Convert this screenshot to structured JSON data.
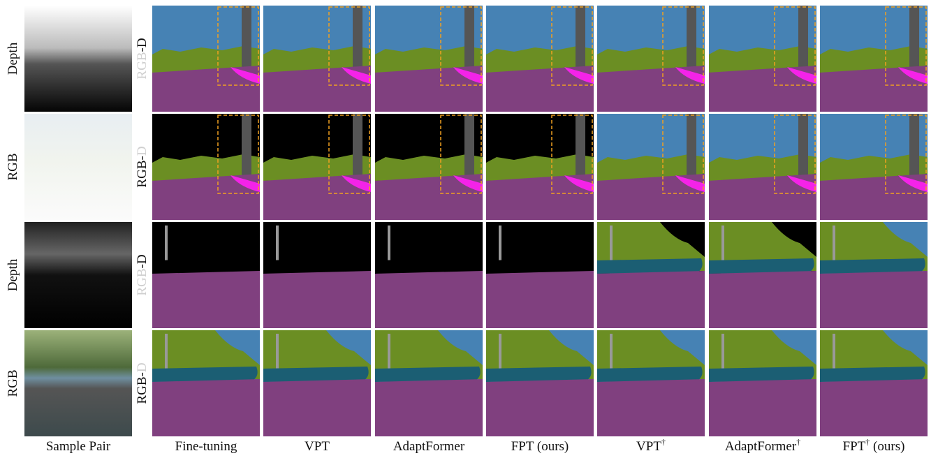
{
  "figure": {
    "rows": [
      {
        "label": "Depth",
        "modality": [
          {
            "text": "RGB",
            "faded": true
          },
          {
            "text": "-D",
            "faded": false
          }
        ]
      },
      {
        "label": "RGB",
        "modality": [
          {
            "text": "RGB-",
            "faded": false
          },
          {
            "text": "D",
            "faded": true
          }
        ]
      },
      {
        "label": "Depth",
        "modality": [
          {
            "text": "RGB",
            "faded": true
          },
          {
            "text": "-D",
            "faded": false
          }
        ]
      },
      {
        "label": "RGB",
        "modality": [
          {
            "text": "RGB-",
            "faded": false
          },
          {
            "text": "D",
            "faded": true
          }
        ]
      }
    ],
    "columns": [
      {
        "name": "Sample Pair"
      },
      {
        "name": "Fine-tuning"
      },
      {
        "name": "VPT"
      },
      {
        "name": "AdaptFormer"
      },
      {
        "name": "FPT (ours)"
      },
      {
        "name": "VPT",
        "sup": "†"
      },
      {
        "name": "AdaptFormer",
        "sup": "†"
      },
      {
        "name": "FPT",
        "sup": "†",
        "suffix": " (ours)"
      }
    ]
  }
}
